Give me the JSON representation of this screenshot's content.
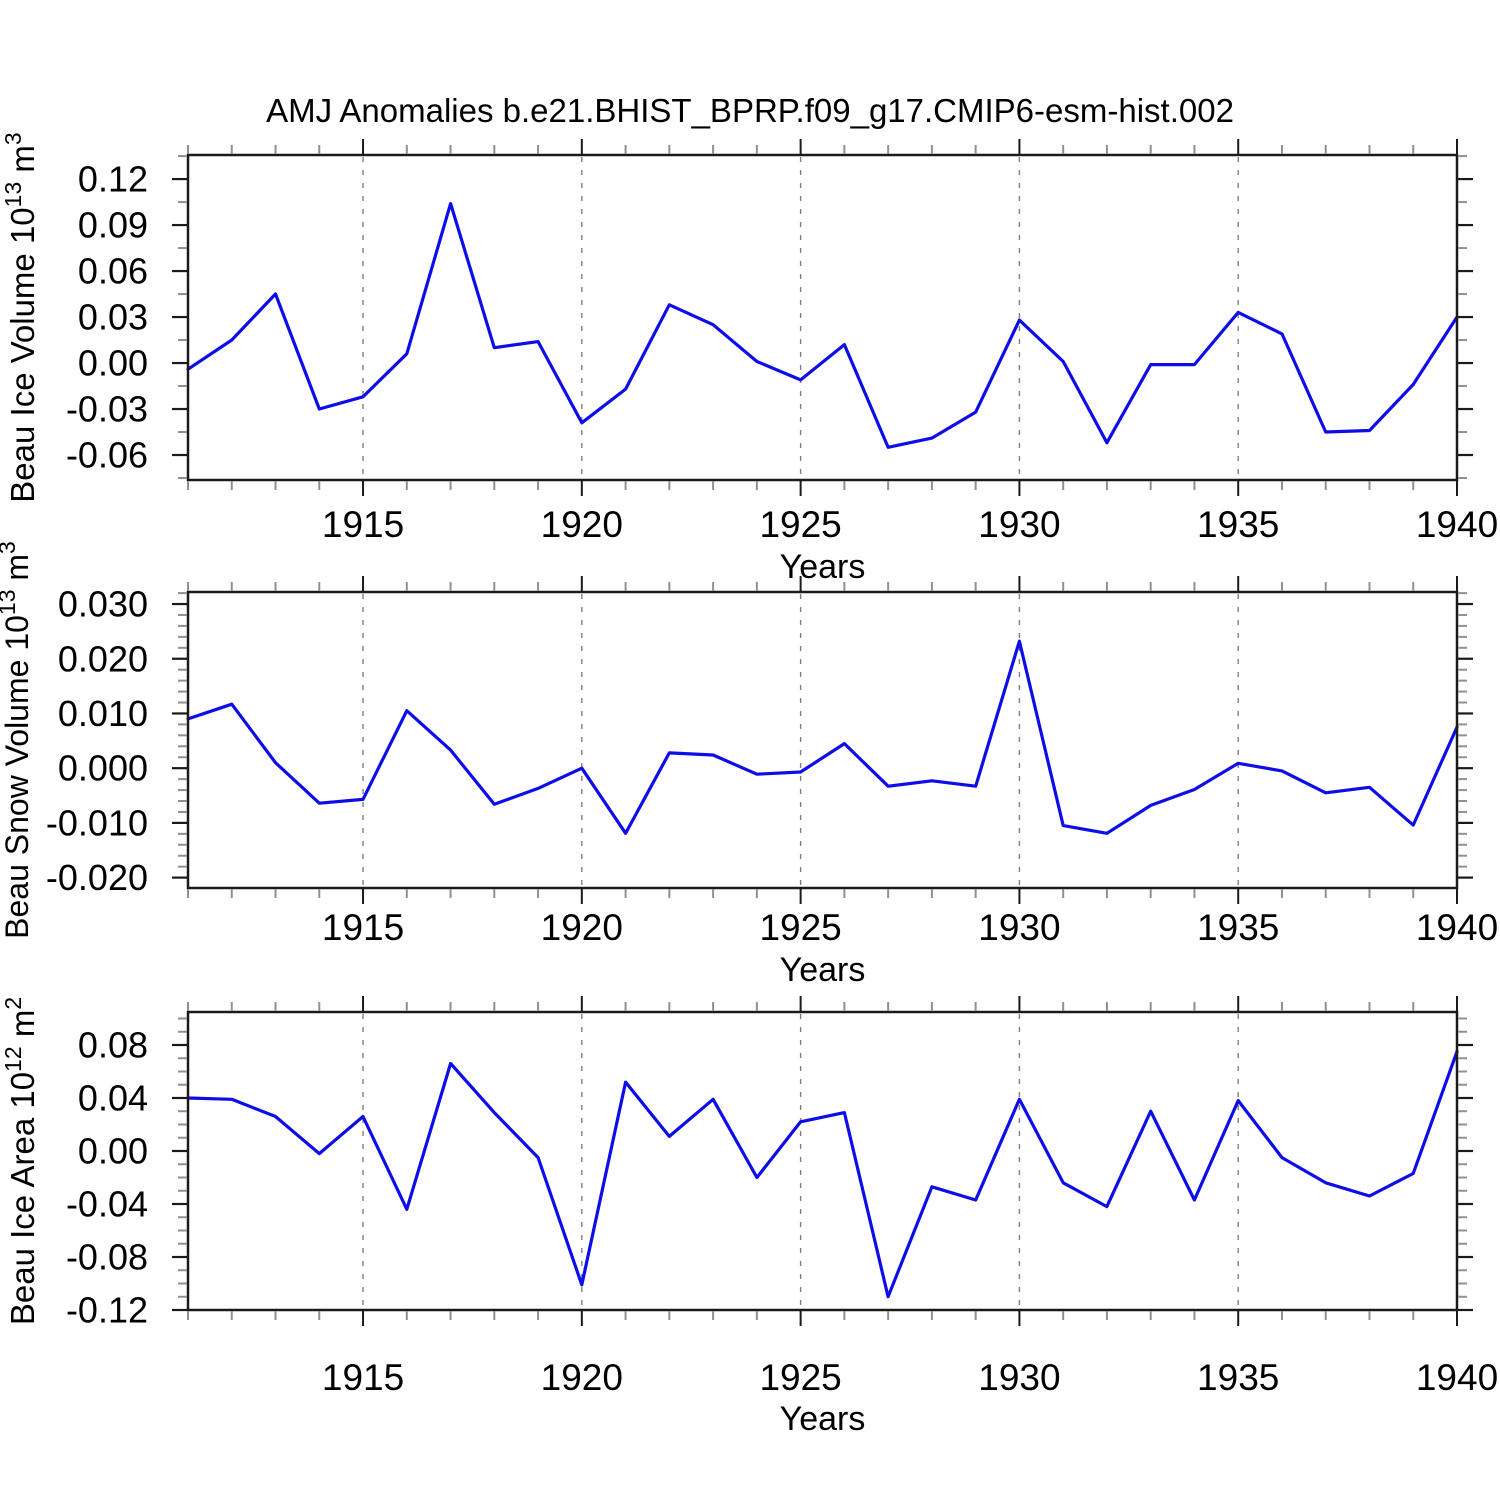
{
  "title": "AMJ Anomalies b.e21.BHIST_BPRP.f09_g17.CMIP6-esm-hist.002",
  "x_axis": {
    "label": "Years",
    "range": [
      1911,
      1940
    ],
    "major_ticks": [
      1915,
      1920,
      1925,
      1930,
      1935,
      1940
    ],
    "gridlines": [
      1915,
      1920,
      1925,
      1930,
      1935
    ],
    "minor_step": 1
  },
  "years": [
    1911,
    1912,
    1913,
    1914,
    1915,
    1916,
    1917,
    1918,
    1919,
    1920,
    1921,
    1922,
    1923,
    1924,
    1925,
    1926,
    1927,
    1928,
    1929,
    1930,
    1931,
    1932,
    1933,
    1934,
    1935,
    1936,
    1937,
    1938,
    1939,
    1940
  ],
  "style": {
    "line_color": "#0d0de8",
    "grid_color": "#7f7f7f",
    "axis_color": "#1a1a1a",
    "major_tick_color": "#1a1a1a",
    "minor_tick_color": "#909090",
    "text_color": "#000000"
  },
  "chart_data": [
    {
      "type": "line",
      "name": "Beau Ice Volume",
      "ylabel_parts": [
        {
          "text": "Beau Ice Volume 10"
        },
        {
          "text": "13",
          "sup": true
        },
        {
          "text": " m"
        },
        {
          "text": "3",
          "sup": true
        }
      ],
      "ylim": [
        -0.0763,
        0.1357
      ],
      "yticks": [
        0.12,
        0.09,
        0.06,
        0.03,
        0.0,
        -0.03,
        -0.06
      ],
      "ytick_labels": [
        "0.12",
        "0.09",
        "0.06",
        "0.03",
        "0.00",
        "-0.03",
        "-0.06"
      ],
      "y_minor_step": 0.015,
      "values": [
        -0.004,
        0.015,
        0.045,
        -0.03,
        -0.022,
        0.006,
        0.104,
        0.01,
        0.014,
        -0.039,
        -0.017,
        0.038,
        0.025,
        0.001,
        -0.011,
        0.012,
        -0.055,
        -0.049,
        -0.032,
        0.028,
        0.001,
        -0.052,
        -0.001,
        -0.001,
        0.033,
        0.019,
        -0.045,
        -0.044,
        -0.014,
        0.03
      ]
    },
    {
      "type": "line",
      "name": "Beau Snow Volume",
      "ylabel_parts": [
        {
          "text": "Beau Snow Volume 10"
        },
        {
          "text": "13",
          "sup": true
        },
        {
          "text": " m"
        },
        {
          "text": "3",
          "sup": true
        }
      ],
      "ylim": [
        -0.0219,
        0.0322
      ],
      "yticks": [
        0.03,
        0.02,
        0.01,
        0.0,
        -0.01,
        -0.02
      ],
      "ytick_labels": [
        "0.030",
        "0.020",
        "0.010",
        "0.000",
        "-0.010",
        "-0.020"
      ],
      "y_minor_step": 0.002,
      "values": [
        0.009,
        0.0117,
        0.001,
        -0.0064,
        -0.0057,
        0.0105,
        0.0033,
        -0.0066,
        -0.0037,
        0.0,
        -0.0119,
        0.0028,
        0.0024,
        -0.0011,
        -0.0007,
        0.0045,
        -0.0033,
        -0.0023,
        -0.0033,
        0.0232,
        -0.0105,
        -0.0119,
        -0.0068,
        -0.0039,
        0.0009,
        -0.0005,
        -0.0045,
        -0.0035,
        -0.0104,
        0.0075
      ]
    },
    {
      "type": "line",
      "name": "Beau Ice Area",
      "ylabel_parts": [
        {
          "text": "Beau Ice Area 10"
        },
        {
          "text": "12",
          "sup": true
        },
        {
          "text": " m"
        },
        {
          "text": "2",
          "sup": true
        }
      ],
      "ylim": [
        -0.12,
        0.1049
      ],
      "yticks": [
        0.08,
        0.04,
        0.0,
        -0.04,
        -0.08,
        -0.12
      ],
      "ytick_labels": [
        "0.08",
        "0.04",
        "0.00",
        "-0.04",
        "-0.08",
        "-0.12"
      ],
      "y_minor_step": 0.01,
      "values": [
        0.04,
        0.039,
        0.026,
        -0.002,
        0.026,
        -0.044,
        0.066,
        0.029,
        -0.005,
        -0.101,
        0.052,
        0.011,
        0.039,
        -0.02,
        0.022,
        0.029,
        -0.11,
        -0.027,
        -0.037,
        0.039,
        -0.024,
        -0.042,
        0.03,
        -0.037,
        0.038,
        -0.005,
        -0.024,
        -0.034,
        -0.017,
        0.075
      ]
    }
  ]
}
